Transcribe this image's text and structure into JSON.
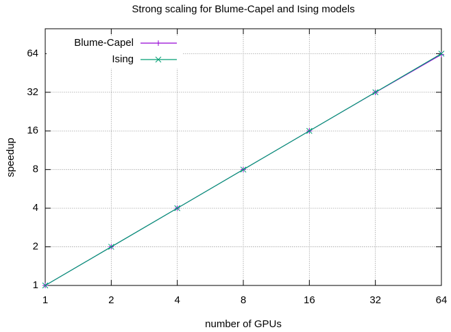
{
  "chart_data": {
    "type": "line",
    "title": "Strong scaling for Blume-Capel and Ising models",
    "xlabel": "number of GPUs",
    "ylabel": "speedup",
    "x": [
      1,
      2,
      4,
      8,
      16,
      32,
      64
    ],
    "series": [
      {
        "name": "Blume-Capel",
        "color": "#9400d3",
        "marker": "plus",
        "values": [
          1,
          2,
          4,
          8,
          16,
          31.9,
          63
        ]
      },
      {
        "name": "Ising",
        "color": "#009e73",
        "marker": "cross",
        "values": [
          1,
          2,
          4,
          8,
          16,
          32,
          64
        ]
      }
    ],
    "xlim": [
      1,
      64
    ],
    "ylim": [
      1,
      100
    ],
    "xticks": [
      1,
      2,
      4,
      8,
      16,
      32,
      64
    ],
    "yticks": [
      1,
      2,
      4,
      8,
      16,
      32,
      64
    ],
    "xscale": "log",
    "yscale": "log",
    "grid": true,
    "legend": "top-left"
  }
}
